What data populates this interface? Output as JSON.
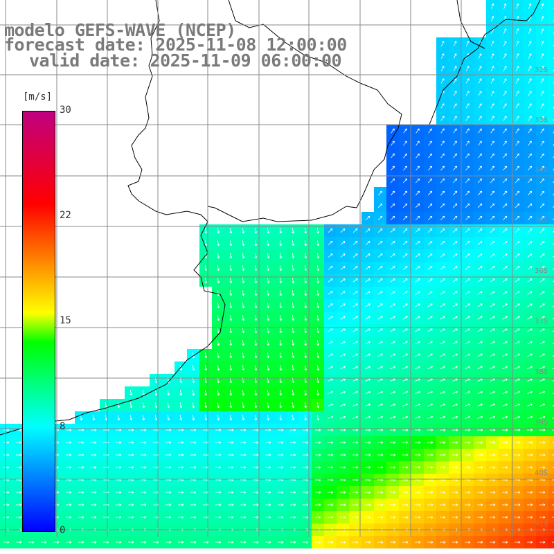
{
  "title": {
    "model": "modelo GEFS-WAVE (NCEP)",
    "forecast": "forecast date: 2025-11-08 12:00:00",
    "valid": "valid date: 2025-11-09 06:00:00"
  },
  "legend": {
    "unit": "[m/s]",
    "ticks": [
      "30",
      "22",
      "15",
      "8",
      "0"
    ],
    "tick_values": [
      30,
      22,
      15,
      8,
      0
    ],
    "range": [
      0,
      30
    ],
    "colors": [
      "#0000ff",
      "#00ffff",
      "#00ff00",
      "#ffff00",
      "#ff0000",
      "#c0007f"
    ]
  },
  "map": {
    "land_color": "#ffffff",
    "grid_color": "#888888",
    "coast_color": "#000000",
    "arrow_color": "#ffffff",
    "lat_labels": [
      "32S",
      "33S",
      "34S",
      "35S",
      "36S",
      "37S",
      "38S",
      "39S",
      "40S",
      "41S"
    ]
  }
}
